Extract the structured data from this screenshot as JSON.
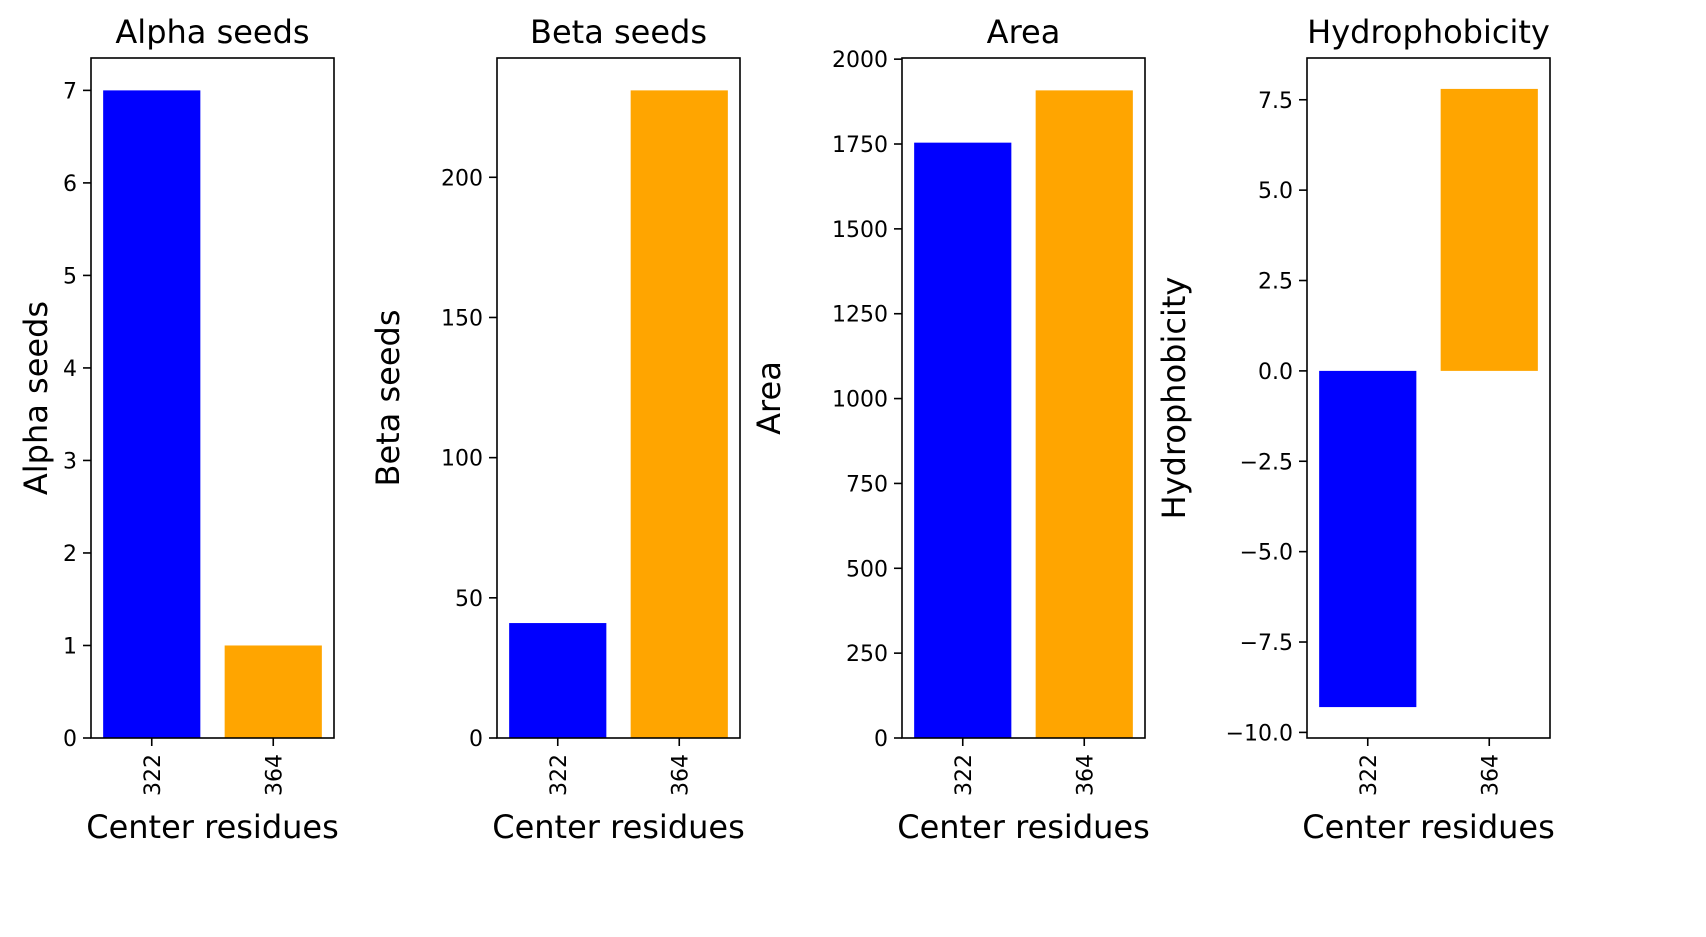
{
  "chart_data": [
    {
      "type": "bar",
      "title": "Alpha seeds",
      "xlabel": "Center residues",
      "ylabel": "Alpha seeds",
      "categories": [
        "322",
        "364"
      ],
      "values": [
        7,
        1
      ],
      "colors": [
        "#0000ff",
        "#ffa500"
      ],
      "ylim": [
        0,
        7.35
      ],
      "yticks": [
        0,
        1,
        2,
        3,
        4,
        5,
        6,
        7
      ],
      "ytick_labels": [
        "0",
        "1",
        "2",
        "3",
        "4",
        "5",
        "6",
        "7"
      ],
      "grid": false
    },
    {
      "type": "bar",
      "title": "Beta seeds",
      "xlabel": "Center residues",
      "ylabel": "Beta seeds",
      "categories": [
        "322",
        "364"
      ],
      "values": [
        41,
        231
      ],
      "colors": [
        "#0000ff",
        "#ffa500"
      ],
      "ylim": [
        0,
        242.55
      ],
      "yticks": [
        0,
        50,
        100,
        150,
        200
      ],
      "ytick_labels": [
        "0",
        "50",
        "100",
        "150",
        "200"
      ],
      "grid": false
    },
    {
      "type": "bar",
      "title": "Area",
      "xlabel": "Center residues",
      "ylabel": "Area",
      "categories": [
        "322",
        "364"
      ],
      "values": [
        1754,
        1908
      ],
      "colors": [
        "#0000ff",
        "#ffa500"
      ],
      "ylim": [
        0,
        2003.4
      ],
      "yticks": [
        0,
        250,
        500,
        750,
        1000,
        1250,
        1500,
        1750,
        2000
      ],
      "ytick_labels": [
        "0",
        "250",
        "500",
        "750",
        "1000",
        "1250",
        "1500",
        "1750",
        "2000"
      ],
      "grid": false
    },
    {
      "type": "bar",
      "title": "Hydrophobicity",
      "xlabel": "Center residues",
      "ylabel": "Hydrophobicity",
      "categories": [
        "322",
        "364"
      ],
      "values": [
        -9.3,
        7.8
      ],
      "colors": [
        "#0000ff",
        "#ffa500"
      ],
      "ylim": [
        -10.155,
        8.655
      ],
      "yticks": [
        -10,
        -7.5,
        -5,
        -2.5,
        0,
        2.5,
        5,
        7.5
      ],
      "ytick_labels": [
        "−10.0",
        "−7.5",
        "−5.0",
        "−2.5",
        "0.0",
        "2.5",
        "5.0",
        "7.5"
      ],
      "grid": false
    }
  ]
}
